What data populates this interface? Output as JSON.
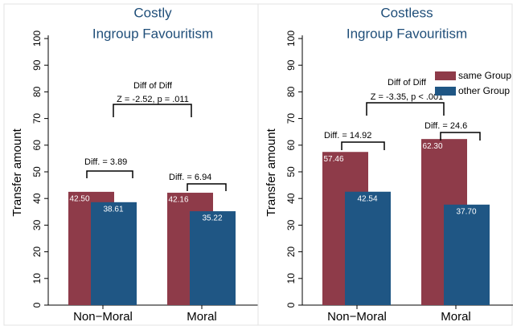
{
  "chart_data": [
    {
      "type": "bar",
      "title": [
        "Costly",
        "Ingroup Favouritism"
      ],
      "y_label": "Transfer amount",
      "categories": [
        "Non−Moral",
        "Moral"
      ],
      "series": [
        {
          "color": "#8e3b49",
          "values": [
            42.5,
            42.16
          ],
          "value_labels": [
            "42.50",
            "42.16"
          ]
        },
        {
          "color": "#1f5684",
          "values": [
            38.61,
            35.22
          ],
          "value_labels": [
            "38.61",
            "35.22"
          ]
        }
      ],
      "annotations": [
        "Diff. = 3.89",
        "Diff. = 6.94",
        "Diff of Diff",
        "Z = -2.52, p = .011"
      ],
      "ylim": [
        0,
        100
      ],
      "yticks": [
        0,
        10,
        20,
        30,
        40,
        50,
        60,
        70,
        80,
        90,
        100
      ]
    },
    {
      "type": "bar",
      "title": [
        "Costless",
        "Ingroup Favouritism"
      ],
      "y_label": "Transfer amount",
      "categories": [
        "Non−Moral",
        "Moral"
      ],
      "series": [
        {
          "name": "same Group",
          "color": "#8e3b49",
          "values": [
            57.46,
            62.3
          ],
          "value_labels": [
            "57.46",
            "62.30"
          ]
        },
        {
          "name": "other Group",
          "color": "#1f5684",
          "values": [
            42.54,
            37.7
          ],
          "value_labels": [
            "42.54",
            "37.70"
          ]
        }
      ],
      "annotations": [
        "Diff. = 14.92",
        "Diff. = 24.6",
        "Diff of Diff",
        "Z = -3.35, p < .001"
      ],
      "legend": "top-right",
      "ylim": [
        0,
        100
      ],
      "yticks": [
        0,
        10,
        20,
        30,
        40,
        50,
        60,
        70,
        80,
        90,
        100
      ]
    }
  ]
}
